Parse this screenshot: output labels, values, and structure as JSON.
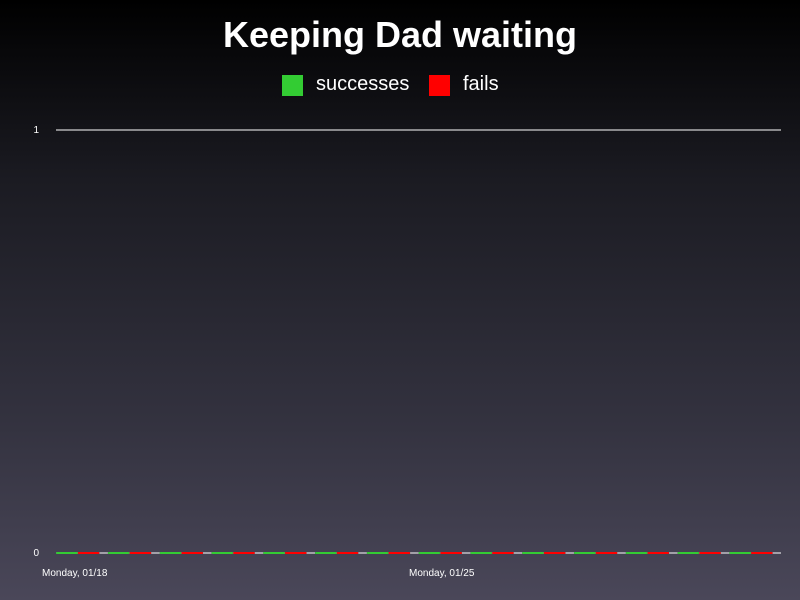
{
  "chart_data": {
    "type": "bar",
    "title": "Keeping Dad waiting",
    "xlabel": "",
    "ylabel": "",
    "ylim": [
      0,
      1
    ],
    "yticks": [
      "0",
      "1"
    ],
    "grid": false,
    "legend_position": "top-center",
    "x_tick_labels": [
      "Monday, 01/18",
      "Monday, 01/25"
    ],
    "categories": [
      "",
      "",
      "",
      "",
      "",
      "",
      "",
      "",
      "",
      "",
      "",
      "",
      "",
      ""
    ],
    "series": [
      {
        "name": "successes",
        "color": "#33cc33",
        "values": [
          0,
          0,
          0,
          0,
          0,
          0,
          0,
          0,
          0,
          0,
          0,
          0,
          0,
          0
        ]
      },
      {
        "name": "fails",
        "color": "#ff0000",
        "values": [
          0,
          0,
          0,
          0,
          0,
          0,
          0,
          0,
          0,
          0,
          0,
          0,
          0,
          0
        ]
      }
    ]
  }
}
